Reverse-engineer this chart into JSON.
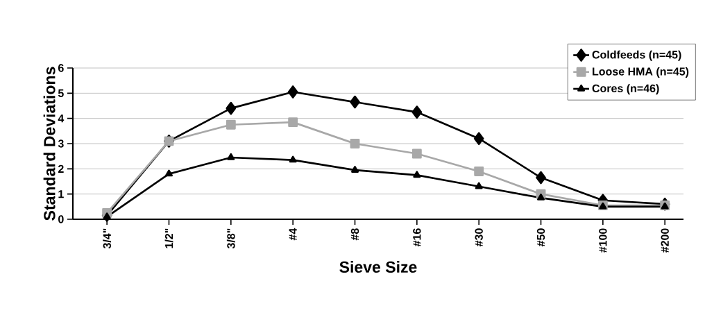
{
  "chart_data": {
    "type": "line",
    "xlabel": "Sieve Size",
    "ylabel": "Standard Deviations",
    "categories": [
      "3/4\"",
      "1/2\"",
      "3/8\"",
      "#4",
      "#8",
      "#16",
      "#30",
      "#50",
      "#100",
      "#200"
    ],
    "series": [
      {
        "name": "Coldfeeds (n=45)",
        "color": "#000000",
        "marker": "diamond",
        "values": [
          0.15,
          3.1,
          4.4,
          5.05,
          4.65,
          4.25,
          3.2,
          1.65,
          0.75,
          0.6
        ]
      },
      {
        "name": "Loose HMA (n=45)",
        "color": "#a8a8a8",
        "marker": "square",
        "values": [
          0.25,
          3.1,
          3.75,
          3.85,
          3.0,
          2.6,
          1.9,
          1.0,
          0.55,
          0.55
        ]
      },
      {
        "name": "Cores (n=46)",
        "color": "#000000",
        "marker": "triangle",
        "values": [
          0.1,
          1.8,
          2.45,
          2.35,
          1.95,
          1.75,
          1.3,
          0.85,
          0.5,
          0.5
        ]
      }
    ],
    "ylim": [
      0,
      6
    ],
    "yticks": [
      0,
      1,
      2,
      3,
      4,
      5,
      6
    ],
    "grid": "y",
    "legend": "top right"
  }
}
